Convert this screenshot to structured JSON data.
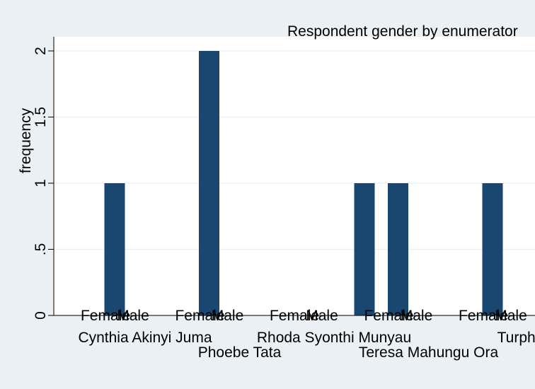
{
  "chart_data": {
    "type": "bar",
    "title": "Respondent gender by enumerator",
    "ylabel": "frequency",
    "xlabel": "",
    "ylim": [
      0,
      2
    ],
    "yticks": [
      {
        "value": 0,
        "label": "0"
      },
      {
        "value": 0.5,
        "label": ".5"
      },
      {
        "value": 1,
        "label": "1"
      },
      {
        "value": 1.5,
        "label": "1.5"
      },
      {
        "value": 2,
        "label": "2"
      }
    ],
    "grid": true,
    "bar_color": "#1a476f",
    "groups": [
      {
        "name": "Cynthia Akinyi Juma",
        "bars": [
          {
            "label": "Female",
            "value": 1
          },
          {
            "label": "Male",
            "value": 0
          }
        ]
      },
      {
        "name": "Phoebe Tata",
        "bars": [
          {
            "label": "Female",
            "value": 2
          },
          {
            "label": "Male",
            "value": 0
          }
        ]
      },
      {
        "name": "Rhoda Syonthi Munyau",
        "bars": [
          {
            "label": "Female",
            "value": 0
          },
          {
            "label": "Male",
            "value": 1
          }
        ]
      },
      {
        "name": "Teresa Mahungu Ora",
        "bars": [
          {
            "label": "Female",
            "value": 1
          },
          {
            "label": "Male",
            "value": 0
          }
        ]
      },
      {
        "name": "Turpher",
        "bars": [
          {
            "label": "Female",
            "value": 1
          },
          {
            "label": "Male",
            "value": 0
          }
        ]
      }
    ]
  }
}
